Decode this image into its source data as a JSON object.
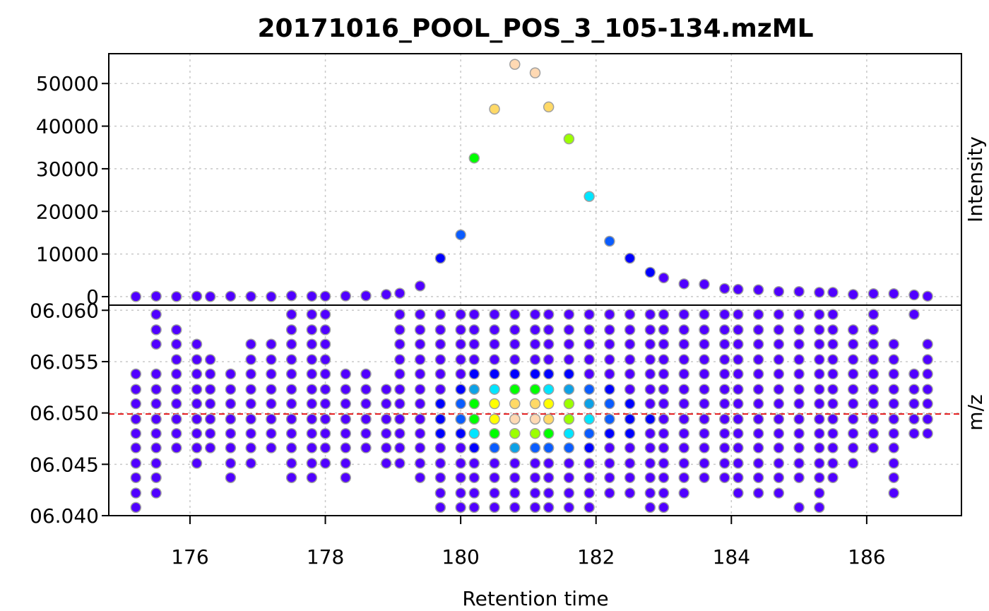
{
  "chart_data": {
    "title": "20171016_POOL_POS_3_105-134.mzML",
    "xlabel": "Retention time",
    "x_ticks": [
      176,
      178,
      180,
      182,
      184,
      186
    ],
    "xlim": [
      174.8,
      187.4
    ],
    "top_panel": {
      "type": "scatter",
      "ylabel": "Intensity",
      "ylim": [
        -2000,
        57000
      ],
      "y_ticks": [
        0,
        10000,
        20000,
        30000,
        40000,
        50000
      ],
      "rt": [
        175.2,
        175.5,
        175.8,
        176.1,
        176.3,
        176.6,
        176.9,
        177.2,
        177.5,
        177.8,
        178.0,
        178.3,
        178.6,
        178.9,
        179.1,
        179.4,
        179.7,
        180.0,
        180.2,
        180.5,
        180.8,
        181.1,
        181.3,
        181.6,
        181.9,
        182.2,
        182.5,
        182.8,
        183.0,
        183.3,
        183.6,
        183.9,
        184.1,
        184.4,
        184.7,
        185.0,
        185.3,
        185.5,
        185.8,
        186.1,
        186.4,
        186.7,
        186.9
      ],
      "intensity": [
        0,
        100,
        0,
        100,
        0,
        100,
        50,
        0,
        200,
        100,
        100,
        150,
        200,
        500,
        800,
        2500,
        9000,
        14500,
        32500,
        44000,
        54500,
        52500,
        44500,
        37000,
        23500,
        13000,
        9000,
        5700,
        4400,
        3000,
        2900,
        1900,
        1700,
        1600,
        1200,
        1200,
        1000,
        1000,
        500,
        700,
        700,
        400,
        100
      ]
    },
    "bottom_panel": {
      "type": "scatter",
      "ylabel": "m/z",
      "ylim": [
        106.04,
        106.0605
      ],
      "y_ticks": [
        106.04,
        106.045,
        106.05,
        106.055,
        106.06
      ],
      "y_tick_labels": [
        "06.040",
        "06.045",
        "06.050",
        "06.055",
        "06.060"
      ],
      "reference_mz": 106.0499,
      "reference_line_color": "#e41a1c",
      "mz_levels": [
        106.0408,
        106.0422,
        106.0437,
        106.0451,
        106.0466,
        106.048,
        106.0494,
        106.0509,
        106.0523,
        106.0538,
        106.0552,
        106.0567,
        106.0581,
        106.0596
      ],
      "column_rt": [
        175.2,
        175.5,
        175.8,
        176.1,
        176.3,
        176.6,
        176.9,
        177.2,
        177.5,
        177.8,
        178.0,
        178.3,
        178.6,
        178.9,
        179.1,
        179.4,
        179.7,
        180.0,
        180.2,
        180.5,
        180.8,
        181.1,
        181.3,
        181.6,
        181.9,
        182.2,
        182.5,
        182.8,
        183.0,
        183.3,
        183.6,
        183.9,
        184.1,
        184.4,
        184.7,
        185.0,
        185.3,
        185.5,
        185.8,
        186.1,
        186.4,
        186.7,
        186.9
      ],
      "column_points": [
        [
          0,
          1,
          2,
          3,
          4,
          5,
          6,
          7,
          8,
          9
        ],
        [
          1,
          2,
          3,
          4,
          5,
          6,
          7,
          8,
          9,
          11,
          12,
          13
        ],
        [
          4,
          5,
          6,
          7,
          8,
          9,
          10,
          11,
          12
        ],
        [
          3,
          4,
          5,
          6,
          7,
          8,
          9,
          10,
          11
        ],
        [
          4,
          5,
          6,
          7,
          8,
          9,
          10
        ],
        [
          2,
          3,
          4,
          5,
          6,
          7,
          8,
          9
        ],
        [
          3,
          4,
          5,
          6,
          7,
          8,
          9,
          10,
          11
        ],
        [
          4,
          5,
          6,
          7,
          8,
          9,
          10,
          11
        ],
        [
          2,
          3,
          4,
          5,
          6,
          7,
          8,
          9,
          10,
          11,
          12,
          13
        ],
        [
          2,
          3,
          4,
          5,
          6,
          7,
          8,
          9,
          10,
          11,
          12,
          13
        ],
        [
          3,
          4,
          5,
          6,
          7,
          8,
          9,
          10,
          11,
          12,
          13
        ],
        [
          2,
          3,
          4,
          5,
          6,
          7,
          8,
          9
        ],
        [
          4,
          5,
          6,
          7,
          8,
          9
        ],
        [
          3,
          4,
          5,
          6,
          7,
          8
        ],
        [
          3,
          4,
          5,
          6,
          7,
          8,
          9,
          10,
          11,
          12,
          13
        ],
        [
          2,
          3,
          4,
          5,
          6,
          7,
          8,
          9,
          10,
          11,
          12,
          13
        ],
        [
          0,
          1,
          2,
          3,
          4,
          5,
          6,
          7,
          8,
          9,
          10,
          11,
          12,
          13
        ],
        [
          0,
          1,
          2,
          3,
          4,
          5,
          6,
          7,
          8,
          9,
          10,
          11,
          12,
          13
        ],
        [
          0,
          1,
          2,
          3,
          4,
          5,
          6,
          7,
          8,
          9,
          10,
          11,
          12,
          13
        ],
        [
          0,
          1,
          2,
          3,
          4,
          5,
          6,
          7,
          8,
          9,
          10,
          11,
          12,
          13
        ],
        [
          0,
          1,
          2,
          3,
          4,
          5,
          6,
          7,
          8,
          9,
          10,
          11,
          12,
          13
        ],
        [
          0,
          1,
          2,
          3,
          4,
          5,
          6,
          7,
          8,
          9,
          10,
          11,
          12,
          13
        ],
        [
          0,
          1,
          2,
          3,
          4,
          5,
          6,
          7,
          8,
          9,
          10,
          11,
          12,
          13
        ],
        [
          0,
          1,
          2,
          3,
          4,
          5,
          6,
          7,
          8,
          9,
          10,
          11,
          12,
          13
        ],
        [
          0,
          1,
          2,
          3,
          4,
          5,
          6,
          7,
          8,
          9,
          10,
          11,
          12,
          13
        ],
        [
          1,
          2,
          3,
          4,
          5,
          6,
          7,
          8,
          9,
          10,
          11,
          12,
          13
        ],
        [
          1,
          2,
          3,
          4,
          5,
          6,
          7,
          8,
          9,
          10,
          11,
          12,
          13
        ],
        [
          0,
          1,
          2,
          3,
          4,
          5,
          6,
          7,
          8,
          9,
          10,
          11,
          12,
          13
        ],
        [
          0,
          1,
          2,
          3,
          4,
          5,
          6,
          7,
          8,
          9,
          10,
          11,
          12,
          13
        ],
        [
          1,
          2,
          3,
          4,
          5,
          6,
          7,
          8,
          9,
          10,
          11,
          12,
          13
        ],
        [
          2,
          3,
          4,
          5,
          6,
          7,
          8,
          9,
          10,
          11,
          12,
          13
        ],
        [
          2,
          3,
          4,
          5,
          6,
          7,
          8,
          9,
          10,
          11,
          12,
          13
        ],
        [
          1,
          2,
          3,
          4,
          5,
          6,
          7,
          8,
          9,
          10,
          11,
          12,
          13
        ],
        [
          1,
          2,
          3,
          4,
          5,
          6,
          7,
          8,
          9,
          10,
          11,
          12,
          13
        ],
        [
          1,
          2,
          3,
          4,
          5,
          6,
          7,
          8,
          9,
          10,
          11,
          12,
          13
        ],
        [
          0,
          2,
          3,
          4,
          5,
          6,
          7,
          8,
          9,
          10,
          11,
          12,
          13
        ],
        [
          0,
          1,
          2,
          3,
          4,
          5,
          6,
          7,
          8,
          9,
          10,
          11,
          12,
          13
        ],
        [
          2,
          3,
          4,
          5,
          6,
          7,
          8,
          9,
          10,
          11,
          12,
          13
        ],
        [
          3,
          4,
          5,
          6,
          7,
          8,
          9,
          10,
          11,
          12
        ],
        [
          4,
          5,
          6,
          7,
          8,
          9,
          10,
          11,
          12,
          13
        ],
        [
          1,
          2,
          3,
          4,
          5,
          6,
          7,
          8,
          9,
          10,
          11
        ],
        [
          5,
          6,
          7,
          8,
          9,
          13
        ],
        [
          5,
          6,
          7,
          8,
          9,
          10,
          11
        ]
      ]
    },
    "color_scale": [
      "#5000ff",
      "#0000ff",
      "#0a5cff",
      "#0da1e6",
      "#00e5ff",
      "#00ff00",
      "#9cff00",
      "#ffff00",
      "#ffd966",
      "#ffd9b3"
    ]
  }
}
